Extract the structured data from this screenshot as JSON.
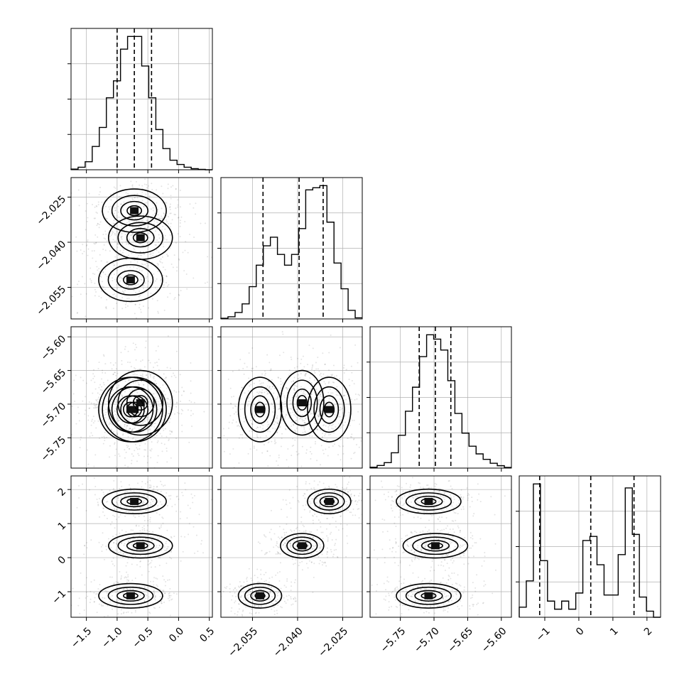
{
  "chart_data": {
    "type": "corner",
    "parameters": [
      {
        "range": [
          -1.75,
          0.55
        ],
        "ticks": [
          -1.5,
          -1.0,
          -0.5,
          0.0,
          0.5
        ],
        "tick_labels": [
          "−1.5",
          "−1.0",
          "−0.5",
          "0.0",
          "0.5"
        ],
        "quantiles": [
          -1.0,
          -0.72,
          -0.44
        ],
        "hist": {
          "start": -1.75,
          "width": 0.115,
          "counts": [
            0.3,
            1.2,
            3.8,
            11,
            20,
            34,
            42,
            57,
            63,
            63,
            49,
            34,
            19,
            10,
            4.5,
            2.5,
            1.2,
            0.5,
            0.2,
            0
          ]
        }
      },
      {
        "range": [
          -2.0655,
          -2.0185
        ],
        "ticks": [
          -2.055,
          -2.04,
          -2.025
        ],
        "tick_labels": [
          "−2.055",
          "−2.040",
          "−2.025"
        ],
        "quantiles": [
          -2.0515,
          -2.0395,
          -2.0315
        ],
        "hist": {
          "start": -2.0655,
          "width": 0.00235,
          "counts": [
            0.3,
            1.0,
            3.0,
            7,
            15,
            25,
            34,
            38,
            30,
            25,
            30,
            42,
            60,
            61,
            62,
            45,
            26,
            14,
            4,
            0.5
          ]
        }
      },
      {
        "range": [
          -5.795,
          -5.585
        ],
        "ticks": [
          -5.75,
          -5.7,
          -5.65,
          -5.6
        ],
        "tick_labels": [
          "−5.75",
          "−5.70",
          "−5.65",
          "−5.60"
        ],
        "quantiles": [
          -5.722,
          -5.698,
          -5.675
        ],
        "hist": {
          "start": -5.795,
          "width": 0.0105,
          "counts": [
            0.4,
            1.2,
            2.5,
            7,
            15,
            26,
            37,
            51,
            61,
            59,
            54,
            40,
            25,
            16,
            10,
            6.5,
            4.0,
            2.2,
            1.1,
            0.3
          ]
        }
      },
      {
        "range": [
          -1.75,
          2.4
        ],
        "ticks": [
          -1,
          0,
          1,
          2
        ],
        "tick_labels": [
          "−1",
          "0",
          "1",
          "2"
        ],
        "quantiles": [
          -1.15,
          0.35,
          1.62
        ],
        "hist": {
          "start": -1.75,
          "width": 0.2075,
          "counts": [
            5,
            18,
            66,
            28,
            8,
            4,
            8,
            4,
            12,
            38,
            40,
            26,
            11,
            11,
            31,
            64,
            41,
            10,
            3,
            0
          ]
        }
      }
    ],
    "left_tick_labels": {
      "row1": [
        "−2.025",
        "−2.040",
        "−2.055"
      ],
      "row2": [
        "−5.60",
        "−5.65",
        "−5.70",
        "−5.75"
      ],
      "row3": [
        "2",
        "1",
        "0",
        "−1"
      ]
    },
    "clusters": [
      {
        "p0": -0.72,
        "p1": -2.0295,
        "p2": -5.708,
        "p3": 1.65
      },
      {
        "p0": -0.62,
        "p1": -2.0385,
        "p2": -5.698,
        "p3": 0.35
      },
      {
        "p0": -0.78,
        "p1": -2.0525,
        "p2": -5.708,
        "p3": -1.12
      }
    ],
    "grid": true,
    "histogram_style": "step",
    "quantile_line_style": "dashed"
  }
}
